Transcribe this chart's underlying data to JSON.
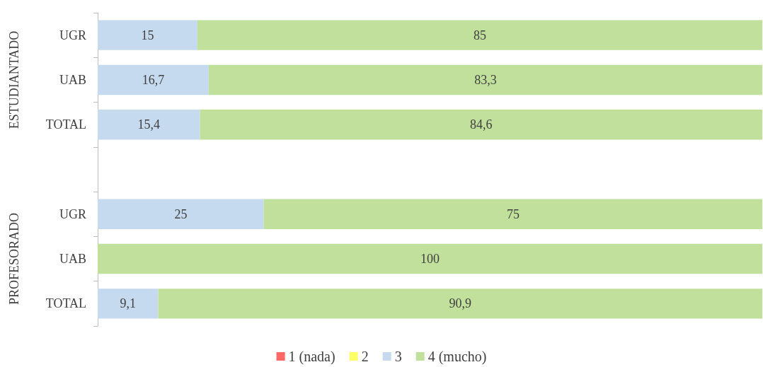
{
  "chart_data": {
    "type": "bar",
    "orientation": "horizontal",
    "stacked": true,
    "legend": "bottom",
    "grid": false,
    "tick_labels": "y",
    "categories": [
      "UGR",
      "UAB",
      "TOTAL",
      null,
      "UGR",
      "UAB",
      "TOTAL"
    ],
    "annotations": [
      "ESTUDIANTADO",
      "PROFESORADO"
    ],
    "xlim": [
      0,
      100
    ],
    "series": [
      {
        "name": "1 (nada)",
        "color": "#ff6666",
        "values": [
          null,
          null,
          null,
          null,
          null,
          null,
          null
        ]
      },
      {
        "name": "2",
        "color": "#ffff66",
        "values": [
          null,
          null,
          null,
          null,
          null,
          null,
          null
        ]
      },
      {
        "name": "3",
        "color": "#c5d9ef",
        "values": [
          15,
          16.7,
          15.4,
          null,
          25,
          null,
          9.1
        ],
        "value_labels": [
          "15",
          "16,7",
          "15,4",
          null,
          "25",
          null,
          "9,1"
        ]
      },
      {
        "name": "4 (mucho)",
        "color": "#c0e09b",
        "values": [
          85,
          83.3,
          84.6,
          null,
          75,
          100,
          90.9
        ],
        "value_labels": [
          "85",
          "83,3",
          "84,6",
          null,
          "75",
          "100",
          "90,9"
        ]
      }
    ]
  }
}
